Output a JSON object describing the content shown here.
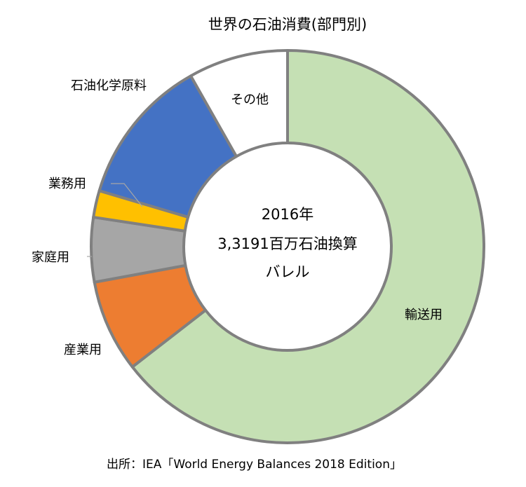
{
  "chart_data": {
    "type": "pie",
    "title": "世界の石油消費(部門別)",
    "center_text": [
      "2016年",
      "3,3191百万石油換算",
      "バレル"
    ],
    "source": "出所：IEA「World Energy Balances 2018 Edition」",
    "slices": [
      {
        "label": "輸送用",
        "value": 64.5,
        "color": "#c5e0b4"
      },
      {
        "label": "産業用",
        "value": 7.6,
        "color": "#ed7d31"
      },
      {
        "label": "家庭用",
        "value": 5.3,
        "color": "#a6a6a6"
      },
      {
        "label": "業務用",
        "value": 2.2,
        "color": "#ffc000"
      },
      {
        "label": "石油化学原料",
        "value": 12.2,
        "color": "#4472c4"
      },
      {
        "label": "その他",
        "value": 8.2,
        "color": "#ffffff"
      }
    ]
  }
}
